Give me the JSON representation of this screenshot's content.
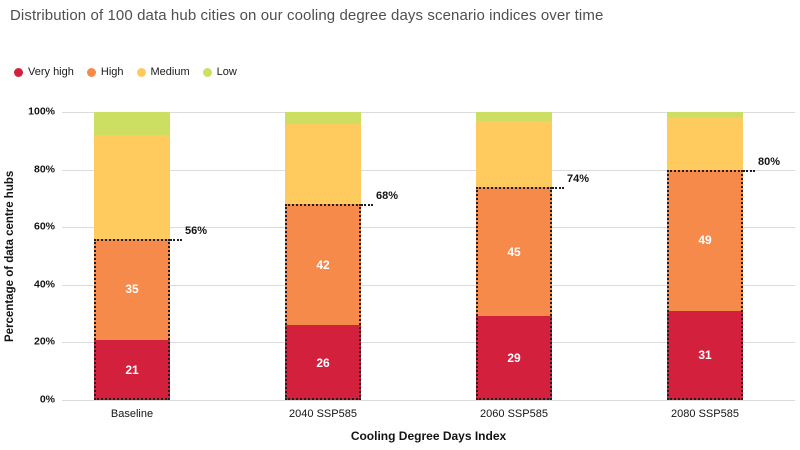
{
  "chart_data": {
    "type": "bar",
    "stacked": true,
    "title": "Distribution of 100 data hub cities on our cooling degree days scenario indices over time",
    "xlabel": "Cooling Degree Days Index",
    "ylabel": "Percentage of data centre hubs",
    "categories": [
      "Baseline",
      "2040 SSP585",
      "2060 SSP585",
      "2080 SSP585"
    ],
    "series": [
      {
        "name": "Very high",
        "color": "#D2203D",
        "values": [
          21,
          26,
          29,
          31
        ],
        "labels_visible": true
      },
      {
        "name": "High",
        "color": "#F58A4B",
        "values": [
          35,
          42,
          45,
          49
        ],
        "labels_visible": true
      },
      {
        "name": "Medium",
        "color": "#FFCA5E",
        "values": [
          36,
          28,
          23,
          18
        ],
        "labels_visible": false
      },
      {
        "name": "Low",
        "color": "#CDDF63",
        "values": [
          8,
          4,
          3,
          2
        ],
        "labels_visible": false
      }
    ],
    "cumulative_annotations": [
      {
        "label": "56%",
        "value": 56
      },
      {
        "label": "68%",
        "value": 68
      },
      {
        "label": "74%",
        "value": 74
      },
      {
        "label": "80%",
        "value": 80
      }
    ],
    "yticks": [
      "0%",
      "20%",
      "40%",
      "60%",
      "80%",
      "100%"
    ],
    "ytick_values": [
      0,
      20,
      40,
      60,
      80,
      100
    ],
    "ylim": [
      0,
      100
    ],
    "grid": "horizontal",
    "legend_position": "top-left",
    "colors": {
      "grid": "#DCDCDC",
      "annotation_line": "#1F1F1F",
      "title_text": "#4F4F4F",
      "axis_text": "#141414",
      "bar_value_text": "#FFFFFF"
    }
  }
}
